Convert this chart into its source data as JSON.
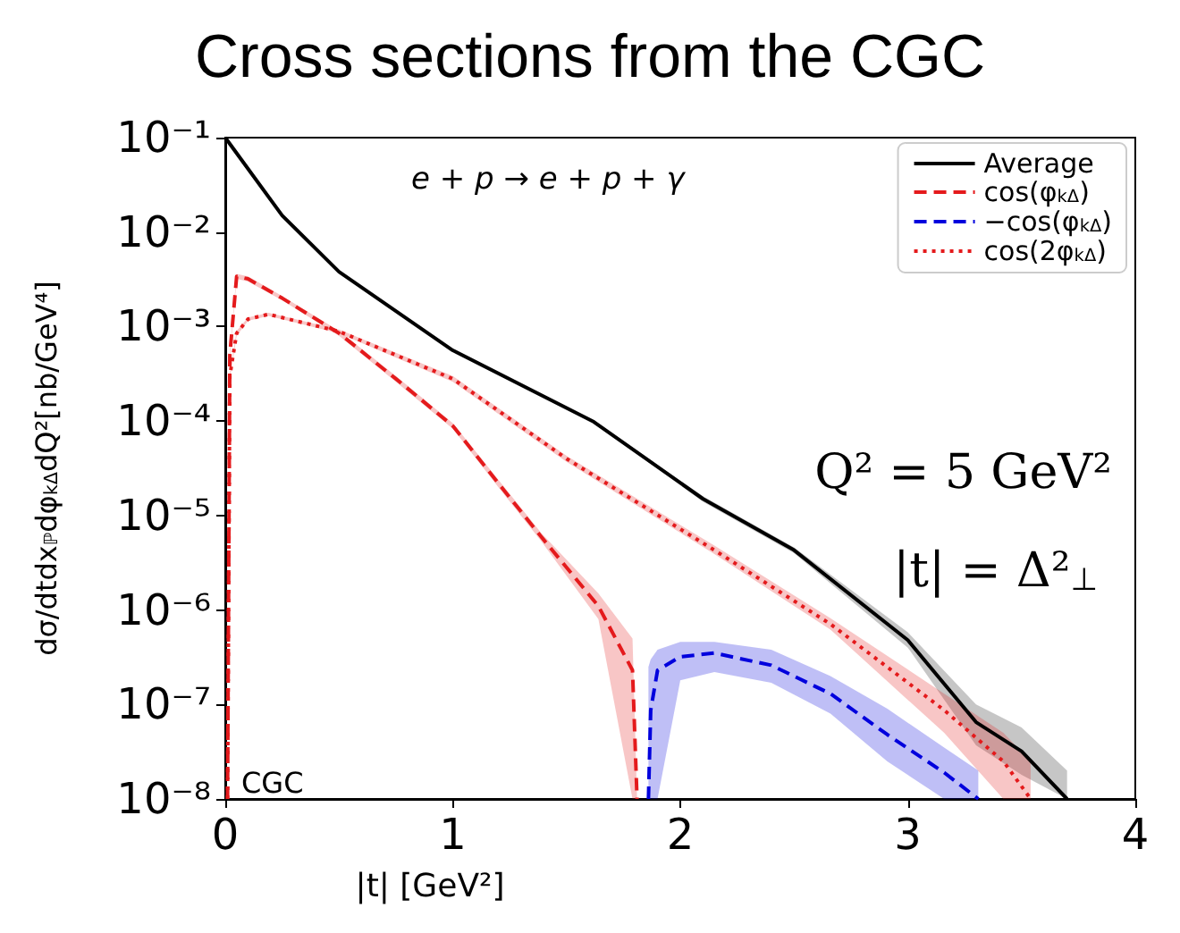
{
  "chart_data": {
    "type": "line",
    "title": "Cross sections from the CGC",
    "xlabel": "|t| [GeV²]",
    "ylabel": "dσ/dtdx$_{ℙ}$dφ$_{kΔ}$dQ²[nb/GeV⁴]",
    "log": true,
    "grid": false,
    "legend": "top right",
    "marker": "none",
    "xlim": [
      0,
      4
    ],
    "xticks": [
      0,
      1,
      2,
      3,
      4
    ],
    "ylim": [
      1e-08,
      0.1
    ],
    "yticks": [
      {
        "value": 1e-08,
        "label": "10⁻⁸"
      },
      {
        "value": 1e-07,
        "label": "10⁻⁷"
      },
      {
        "value": 1e-06,
        "label": "10⁻⁶"
      },
      {
        "value": 1e-05,
        "label": "10⁻⁵"
      },
      {
        "value": 0.0001,
        "label": "10⁻⁴"
      },
      {
        "value": 0.001,
        "label": "10⁻³"
      },
      {
        "value": 0.01,
        "label": "10⁻²"
      },
      {
        "value": 0.1,
        "label": "10⁻¹"
      }
    ],
    "annotations": [
      "e + p → e + p + γ",
      "Q² = 5 GeV²",
      "|t| = Δ²$_{⊥}$",
      "CGC"
    ],
    "series": [
      {
        "name": "Average",
        "color": "#000000",
        "line_style": "solid",
        "x": [
          0,
          0.25,
          0.5,
          1,
          1.62,
          2.1,
          2.5,
          3,
          3.3,
          3.5,
          3.7
        ],
        "values": [
          0.1,
          0.015,
          0.0038,
          0.00056,
          9.8e-05,
          1.5e-05,
          4.3e-06,
          4.8e-07,
          6.5e-08,
          3.2e-08,
          1e-08
        ],
        "lower": [
          0.1,
          0.015,
          0.0038,
          0.00056,
          9.6e-05,
          1.4e-05,
          4e-06,
          4e-07,
          3.7e-08,
          1.8e-08,
          1e-08
        ],
        "upper": [
          0.1,
          0.015,
          0.0038,
          0.00056,
          0.0001,
          1.6e-05,
          4.6e-06,
          5.8e-07,
          1e-07,
          5.7e-08,
          2e-08
        ]
      },
      {
        "name": "cos(φ$_{kΔ}$)",
        "color": "#e41a1c",
        "line_style": "dashed",
        "x": [
          0.01,
          0.02,
          0.05,
          0.1,
          0.25,
          0.5,
          0.75,
          1,
          1.2,
          1.39,
          1.64,
          1.79,
          1.81
        ],
        "values": [
          1e-08,
          0.0005,
          0.0034,
          0.0032,
          0.002,
          0.00085,
          0.00028,
          8.9e-05,
          2.2e-05,
          5.9e-06,
          1.1e-06,
          2.3e-07,
          1e-08
        ],
        "lower": [
          1e-08,
          0.00045,
          0.0032,
          0.003,
          0.0019,
          0.0008,
          0.00026,
          8.3e-05,
          2e-05,
          5.3e-06,
          8e-07,
          1e-08,
          1e-08
        ],
        "upper": [
          1e-08,
          0.00055,
          0.0036,
          0.0034,
          0.0021,
          0.0009,
          0.0003,
          9.5e-05,
          2.4e-05,
          6.5e-06,
          1.5e-06,
          5e-07,
          1e-08
        ]
      },
      {
        "name": "−cos(φ$_{kΔ}$)",
        "color": "#0000dd",
        "line_style": "dashed",
        "x": [
          1.86,
          1.87,
          1.9,
          2.0,
          2.15,
          2.4,
          2.66,
          2.91,
          3.16,
          3.31
        ],
        "values": [
          1e-08,
          8.7e-08,
          2.3e-07,
          3.2e-07,
          3.5e-07,
          2.6e-07,
          1.3e-07,
          4.8e-08,
          1.9e-08,
          1e-08
        ],
        "lower": [
          1e-08,
          1e-08,
          1e-08,
          1.8e-07,
          2.2e-07,
          1.7e-07,
          8e-08,
          2.5e-08,
          1e-08,
          1e-08
        ],
        "upper": [
          2.5e-07,
          3e-07,
          3.8e-07,
          4.6e-07,
          4.6e-07,
          3.8e-07,
          2e-07,
          9e-08,
          3.5e-08,
          2e-08
        ]
      },
      {
        "name": "cos(2φ$_{kΔ}$)",
        "color": "#e41a1c",
        "line_style": "dotted",
        "x": [
          0.01,
          0.02,
          0.05,
          0.1,
          0.19,
          0.5,
          1,
          1.5,
          2.15,
          2.66,
          3.16,
          3.42,
          3.54
        ],
        "values": [
          1e-08,
          0.0003,
          0.00085,
          0.0012,
          0.00135,
          0.00089,
          0.00028,
          4e-05,
          4.3e-06,
          7.1e-07,
          8.7e-08,
          2.5e-08,
          1e-08
        ],
        "lower": [
          1e-08,
          0.00028,
          0.0008,
          0.00115,
          0.0013,
          0.00085,
          0.00026,
          3.7e-05,
          3.9e-06,
          6.2e-07,
          5e-08,
          1e-08,
          1e-08
        ],
        "upper": [
          1e-08,
          0.00032,
          0.0009,
          0.00125,
          0.0014,
          0.00093,
          0.0003,
          4.3e-05,
          4.8e-06,
          8.2e-07,
          1.3e-07,
          5e-08,
          2.5e-08
        ]
      }
    ]
  }
}
